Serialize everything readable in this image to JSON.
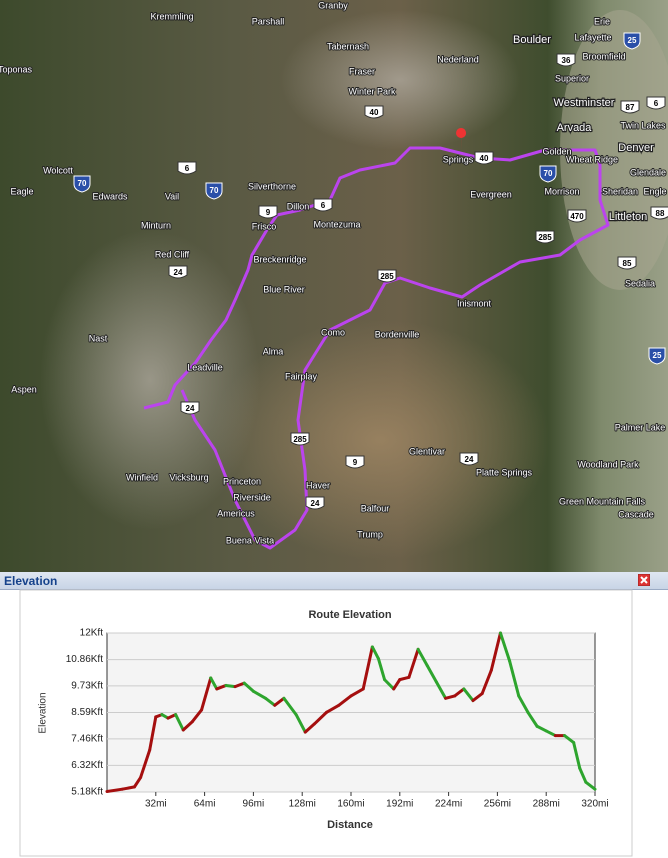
{
  "map": {
    "places": [
      "Kremmling",
      "Parshall",
      "Granby",
      "Tabernash",
      "Fraser",
      "Winter Park",
      "Nederland",
      "Boulder",
      "Erie",
      "Lafayette",
      "Broomfield",
      "Superior",
      "Westminster",
      "Arvada",
      "Twin Lakes",
      "Golden",
      "Wheat Ridge",
      "Denver",
      "Glendale",
      "Morrison",
      "Sheridan",
      "Engle",
      "Littleton",
      "Sedalia",
      "Toponas",
      "Wolcott",
      "Eagle",
      "Edwards",
      "Vail",
      "Minturn",
      "Silverthorne",
      "Dillon",
      "Frisco",
      "Montezuma",
      "Red Cliff",
      "Breckenridge",
      "Blue River",
      "Springs",
      "Evergreen",
      "Inismont",
      "Como",
      "Bordenville",
      "Nast",
      "Aspen",
      "Leadville",
      "Alma",
      "Fairplay",
      "Platte Springs",
      "Glentivar",
      "Palmer Lake",
      "Woodland Park",
      "Green Mountain Falls",
      "Cascade",
      "Balfour",
      "Trump",
      "Winfield",
      "Vicksburg",
      "Princeton",
      "Riverside",
      "Americus",
      "Buena Vista",
      "Haver"
    ],
    "shields": [
      "70",
      "70",
      "70",
      "25",
      "25",
      "6",
      "6",
      "6",
      "9",
      "9",
      "24",
      "24",
      "24",
      "24",
      "285",
      "285",
      "285",
      "40",
      "40",
      "36",
      "87",
      "470",
      "88",
      "85"
    ]
  },
  "panel": {
    "title": "Elevation"
  },
  "chart_data": {
    "type": "line",
    "title": "Route Elevation",
    "x_label": "Distance",
    "y_label": "Elevation",
    "x": [
      0,
      10,
      18,
      22,
      28,
      32,
      36,
      40,
      45,
      50,
      56,
      62,
      68,
      72,
      78,
      84,
      90,
      96,
      104,
      110,
      116,
      124,
      130,
      136,
      144,
      152,
      160,
      168,
      174,
      178,
      182,
      188,
      192,
      198,
      204,
      210,
      216,
      222,
      228,
      234,
      240,
      246,
      252,
      258,
      264,
      270,
      276,
      282,
      288,
      294,
      300,
      306,
      310,
      314,
      320
    ],
    "series": [
      {
        "values": [
          5.2,
          5.3,
          5.4,
          5.8,
          6.98,
          8.4,
          8.5,
          8.35,
          8.5,
          7.84,
          8.2,
          8.7,
          10.07,
          9.6,
          9.75,
          9.7,
          9.85,
          9.5,
          9.2,
          8.9,
          9.2,
          8.5,
          7.75,
          8.1,
          8.6,
          8.9,
          9.3,
          9.6,
          11.4,
          10.9,
          10.0,
          9.6,
          10.0,
          10.1,
          11.3,
          10.6,
          9.9,
          9.2,
          9.3,
          9.6,
          9.1,
          9.4,
          10.4,
          12.0,
          10.8,
          9.3,
          8.6,
          8.0,
          7.8,
          7.6,
          7.6,
          7.3,
          6.2,
          5.6,
          5.3
        ],
        "up_color": "#a50f0f",
        "down_color": "#2ea52e"
      }
    ],
    "xlim": [
      0,
      320
    ],
    "xticks": [
      {
        "value": 32,
        "label": "32mi"
      },
      {
        "value": 64,
        "label": "64mi"
      },
      {
        "value": 96,
        "label": "96mi"
      },
      {
        "value": 128,
        "label": "128mi"
      },
      {
        "value": 160,
        "label": "160mi"
      },
      {
        "value": 192,
        "label": "192mi"
      },
      {
        "value": 224,
        "label": "224mi"
      },
      {
        "value": 256,
        "label": "256mi"
      },
      {
        "value": 288,
        "label": "288mi"
      },
      {
        "value": 320,
        "label": "320mi"
      }
    ],
    "ylim": [
      5.18,
      12
    ],
    "yticks": [
      {
        "value": 5.18,
        "label": "5.18Kft"
      },
      {
        "value": 6.32,
        "label": "6.32Kft"
      },
      {
        "value": 7.46,
        "label": "7.46Kft"
      },
      {
        "value": 8.59,
        "label": "8.59Kft"
      },
      {
        "value": 9.73,
        "label": "9.73Kft"
      },
      {
        "value": 10.86,
        "label": "10.86Kft"
      },
      {
        "value": 12,
        "label": "12Kft"
      }
    ],
    "grid": true
  }
}
